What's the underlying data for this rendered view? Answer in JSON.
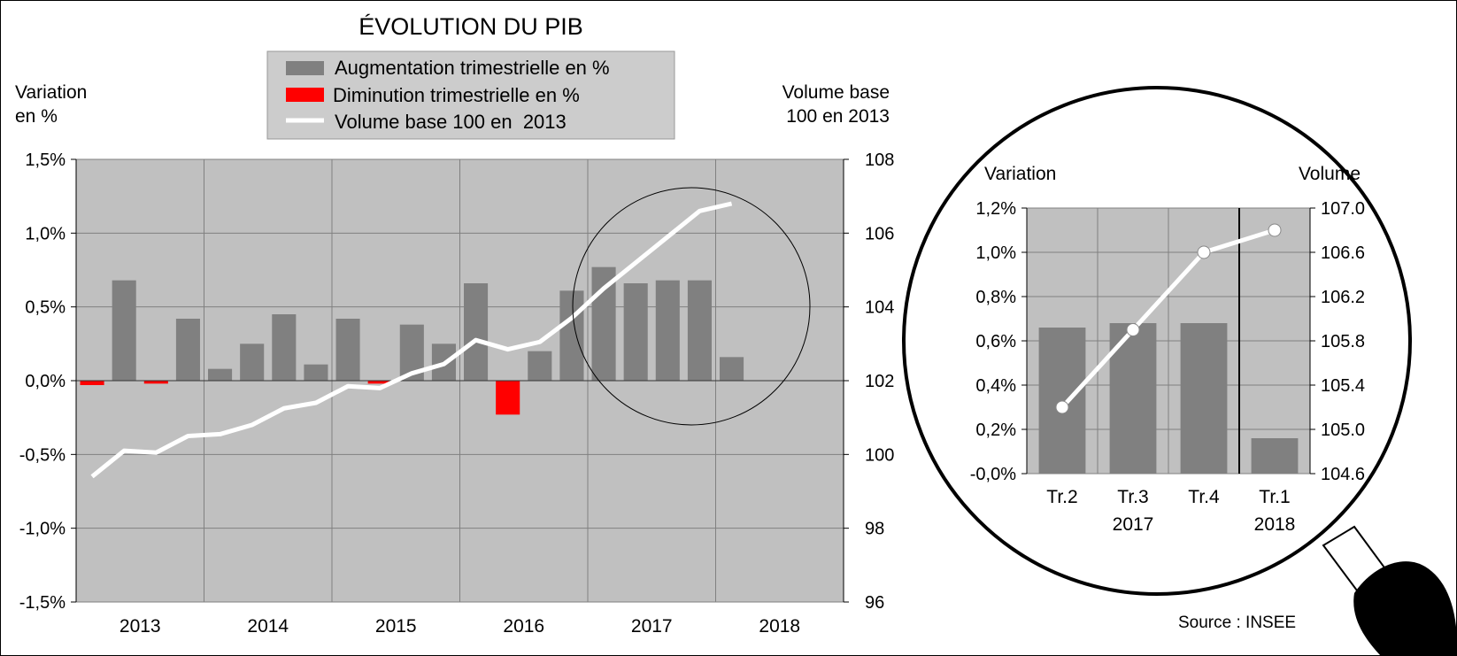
{
  "title": "ÉVOLUTION DU PIB",
  "legend": {
    "items": [
      {
        "label": "Augmentation trimestrielle en %",
        "color": "#808080",
        "kind": "bar"
      },
      {
        "label": "Diminution trimestrielle en %",
        "color": "#ff0000",
        "kind": "bar"
      },
      {
        "label": "Volume base 100 en  2013",
        "color": "#ffffff",
        "kind": "line"
      }
    ]
  },
  "main_labels": {
    "left_axis_title_1": "Variation",
    "left_axis_title_2": "en %",
    "right_axis_title_1": "Volume base",
    "right_axis_title_2": "100 en 2013"
  },
  "zoom_labels": {
    "left_axis_title": "Variation",
    "right_axis_title": "Volume"
  },
  "source": "Source : INSEE",
  "colors": {
    "plot_bg": "#c0c0c0",
    "legend_bg": "#cccccc",
    "increase": "#808080",
    "decrease": "#ff0000",
    "line": "#ffffff",
    "grid": "#808080"
  },
  "chart_data": [
    {
      "type": "bar",
      "title": "ÉVOLUTION DU PIB",
      "years": [
        "2013",
        "2014",
        "2015",
        "2016",
        "2017",
        "2018"
      ],
      "quarters_per_year": 4,
      "variation_pct": [
        -0.03,
        0.68,
        -0.02,
        0.42,
        0.08,
        0.25,
        0.45,
        0.11,
        0.42,
        -0.02,
        0.38,
        0.25,
        0.66,
        -0.23,
        0.2,
        0.61,
        0.77,
        0.66,
        0.68,
        0.68,
        0.16
      ],
      "volume_index": [
        99.4,
        100.1,
        100.05,
        100.5,
        100.55,
        100.8,
        101.25,
        101.4,
        101.85,
        101.8,
        102.2,
        102.45,
        103.1,
        102.85,
        103.05,
        103.7,
        104.5,
        105.2,
        105.9,
        106.6,
        106.8
      ],
      "y_left_ticks": [
        "1,5%",
        "1,0%",
        "0,5%",
        "0,0%",
        "-0,5%",
        "-1,0%",
        "-1,5%"
      ],
      "y_left_range": [
        -1.5,
        1.5
      ],
      "y_right_ticks": [
        "108",
        "106",
        "104",
        "102",
        "100",
        "98",
        "96"
      ],
      "y_right_range": [
        96,
        108
      ],
      "grid": true,
      "legend_position": "top-center"
    },
    {
      "type": "bar",
      "categories": [
        [
          "Tr.2",
          ""
        ],
        [
          "Tr.3",
          "2017"
        ],
        [
          "Tr.4",
          ""
        ],
        [
          "Tr.1",
          "2018"
        ]
      ],
      "variation_pct": [
        0.66,
        0.68,
        0.68,
        0.16
      ],
      "volume_index": [
        105.2,
        105.9,
        106.6,
        106.8
      ],
      "y_left_ticks": [
        "1,2%",
        "1,0%",
        "0,8%",
        "0,6%",
        "0,4%",
        "0,2%",
        "-0,0%"
      ],
      "y_left_range": [
        0,
        1.2
      ],
      "y_right_ticks": [
        "107.0",
        "106.6",
        "106.2",
        "105.8",
        "105.4",
        "105.0",
        "104.6"
      ],
      "y_right_range": [
        104.6,
        107.0
      ],
      "grid": true
    }
  ]
}
